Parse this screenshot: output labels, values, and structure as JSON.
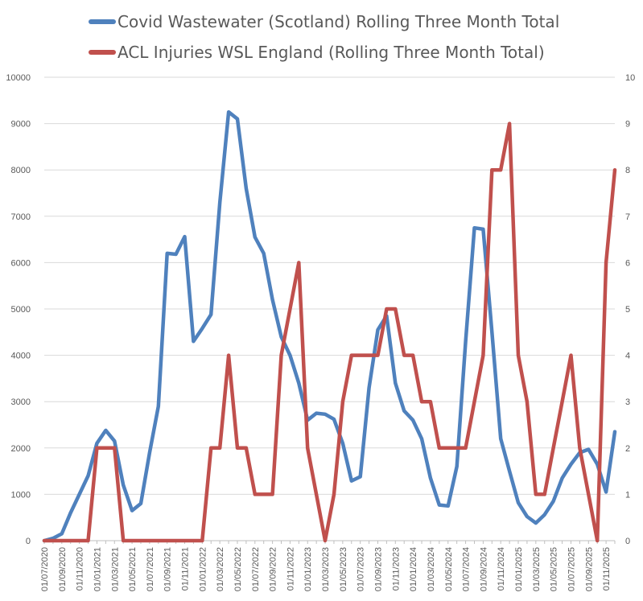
{
  "chart_data": {
    "type": "line",
    "legend": "top",
    "grid": true,
    "y_left_lim": [
      0,
      10000
    ],
    "y_right_lim": [
      0,
      10
    ],
    "y_left_ticks": [
      "0",
      "1000",
      "2000",
      "3000",
      "4000",
      "5000",
      "6000",
      "7000",
      "8000",
      "9000",
      "10000"
    ],
    "y_right_ticks": [
      "0",
      "1",
      "2",
      "3",
      "4",
      "5",
      "6",
      "7",
      "8",
      "9",
      "10"
    ],
    "x": [
      "01/07/2020",
      "01/08/2020",
      "01/09/2020",
      "01/10/2020",
      "01/11/2020",
      "01/12/2020",
      "01/01/2021",
      "01/02/2021",
      "01/03/2021",
      "01/04/2021",
      "01/05/2021",
      "01/06/2021",
      "01/07/2021",
      "01/08/2021",
      "01/09/2021",
      "01/10/2021",
      "01/11/2021",
      "01/12/2021",
      "01/01/2022",
      "01/02/2022",
      "01/03/2022",
      "01/04/2022",
      "01/05/2022",
      "01/06/2022",
      "01/07/2022",
      "01/08/2022",
      "01/09/2022",
      "01/10/2022",
      "01/11/2022",
      "01/12/2022",
      "01/01/2023",
      "01/02/2023",
      "01/03/2023",
      "01/04/2023",
      "01/05/2023",
      "01/06/2023",
      "01/07/2023",
      "01/08/2023",
      "01/09/2023",
      "01/10/2023",
      "01/11/2023",
      "01/12/2023",
      "01/01/2024",
      "01/02/2024",
      "01/03/2024",
      "01/04/2024",
      "01/05/2024",
      "01/06/2024",
      "01/07/2024",
      "01/08/2024",
      "01/09/2024",
      "01/10/2024",
      "01/11/2024",
      "01/12/2024",
      "01/01/2025",
      "01/02/2025",
      "01/03/2025",
      "01/04/2025",
      "01/05/2025",
      "01/06/2025",
      "01/07/2025",
      "01/08/2025",
      "01/09/2025",
      "01/10/2025",
      "01/11/2025",
      "01/12/2025"
    ],
    "x_tick_labels": [
      "01/07/2020",
      "01/09/2020",
      "01/11/2020",
      "01/01/2021",
      "01/03/2021",
      "01/05/2021",
      "01/07/2021",
      "01/09/2021",
      "01/11/2021",
      "01/01/2022",
      "01/03/2022",
      "01/05/2022",
      "01/07/2022",
      "01/09/2022",
      "01/11/2022",
      "01/01/2023",
      "01/03/2023",
      "01/05/2023",
      "01/07/2023",
      "01/09/2023",
      "01/11/2023",
      "01/01/2024",
      "01/03/2024",
      "01/05/2024",
      "01/07/2024",
      "01/09/2024",
      "01/11/2024",
      "01/01/2025",
      "01/03/2025",
      "01/05/2025",
      "01/07/2025",
      "01/09/2025",
      "01/11/2025"
    ],
    "series": [
      {
        "name": "Covid Wastewater (Scotland) Rolling Three Month Total",
        "axis": "left",
        "color": "#4f81bd",
        "values": [
          0,
          50,
          150,
          600,
          1000,
          1400,
          2100,
          2380,
          2150,
          1200,
          650,
          800,
          1900,
          2900,
          6200,
          6180,
          6560,
          4300,
          4580,
          4880,
          7300,
          9250,
          9100,
          7600,
          6550,
          6200,
          5200,
          4400,
          4000,
          3400,
          2600,
          2750,
          2730,
          2620,
          2100,
          1290,
          1380,
          3300,
          4550,
          4850,
          3400,
          2800,
          2600,
          2200,
          1350,
          770,
          750,
          1600,
          4300,
          6750,
          6720,
          4500,
          2200,
          1500,
          820,
          520,
          380,
          560,
          850,
          1350,
          1650,
          1900,
          1970,
          1650,
          1050,
          2350
        ]
      },
      {
        "name": "ACL Injuries WSL England (Rolling Three Month Total)",
        "axis": "right",
        "color": "#c0504d",
        "values": [
          0,
          0,
          0,
          0,
          0,
          0,
          2,
          2,
          2,
          0,
          0,
          0,
          0,
          0,
          0,
          0,
          0,
          0,
          0,
          2,
          2,
          4,
          2,
          2,
          1,
          1,
          1,
          4,
          5,
          6,
          2,
          1,
          0,
          1,
          3,
          4,
          4,
          4,
          4,
          5,
          5,
          4,
          4,
          3,
          3,
          2,
          2,
          2,
          2,
          3,
          4,
          8,
          8,
          9,
          4,
          3,
          1,
          1,
          2,
          3,
          4,
          2,
          1,
          0,
          6,
          8
        ]
      }
    ]
  }
}
